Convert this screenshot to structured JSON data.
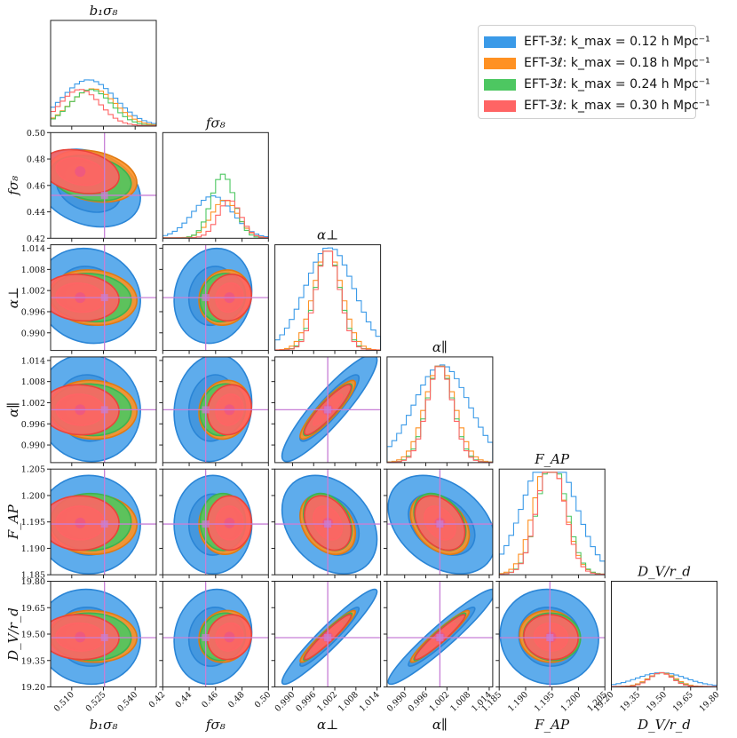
{
  "chart_data": {
    "type": "corner-plot",
    "parameters": [
      {
        "key": "b1s8",
        "label": "b₁σ₈",
        "title": "b₁σ₈",
        "range": [
          0.5,
          0.55
        ],
        "ticks": [
          0.51,
          0.525,
          0.54
        ],
        "tick_labels": [
          "0.510",
          "0.525",
          "0.540"
        ],
        "fiducial": 0.5255
      },
      {
        "key": "fs8",
        "label": "fσ₈",
        "title": "fσ₈",
        "range": [
          0.42,
          0.5
        ],
        "ticks": [
          0.42,
          0.44,
          0.46,
          0.48,
          0.5
        ],
        "tick_labels": [
          "0.42",
          "0.44",
          "0.46",
          "0.48",
          "0.50"
        ],
        "fiducial": 0.4525
      },
      {
        "key": "aperp",
        "label": "α⊥",
        "title": "α⊥",
        "range": [
          0.985,
          1.015
        ],
        "ticks": [
          0.99,
          0.996,
          1.002,
          1.008,
          1.014
        ],
        "tick_labels": [
          "0.990",
          "0.996",
          "1.002",
          "1.008",
          "1.014"
        ],
        "fiducial": 1.0
      },
      {
        "key": "apar",
        "label": "α∥",
        "title": "α∥",
        "range": [
          0.985,
          1.015
        ],
        "ticks": [
          0.99,
          0.996,
          1.002,
          1.008,
          1.014
        ],
        "tick_labels": [
          "0.990",
          "0.996",
          "1.002",
          "1.008",
          "1.014"
        ],
        "fiducial": 1.0
      },
      {
        "key": "FAP",
        "label": "F_AP",
        "title": "F_AP",
        "range": [
          1.185,
          1.205
        ],
        "ticks": [
          1.185,
          1.19,
          1.195,
          1.2,
          1.205
        ],
        "tick_labels": [
          "1.185",
          "1.190",
          "1.195",
          "1.200",
          "1.205"
        ],
        "fiducial": 1.1946
      },
      {
        "key": "DV",
        "label": "D_V/r_d",
        "title": "D_V/r_d",
        "range": [
          19.2,
          19.8
        ],
        "ticks": [
          19.2,
          19.35,
          19.5,
          19.65,
          19.8
        ],
        "tick_labels": [
          "19.20",
          "19.35",
          "19.50",
          "19.65",
          "19.80"
        ],
        "fiducial": 19.48
      }
    ],
    "series": [
      {
        "name": "EFT-3ℓ: k_max = 0.12 h Mpc⁻¹",
        "kmax": 0.12,
        "color": "#3a9ae8",
        "means": [
          0.518,
          0.458,
          1.0005,
          1.0005,
          1.1945,
          19.485
        ],
        "sigmas": [
          0.01,
          0.012,
          0.0055,
          0.0062,
          0.0038,
          0.11
        ]
      },
      {
        "name": "EFT-3ℓ: k_max = 0.18 h Mpc⁻¹",
        "kmax": 0.18,
        "color": "#ff9122",
        "means": [
          0.52,
          0.467,
          1.0,
          1.0,
          1.1945,
          19.487
        ],
        "sigmas": [
          0.0085,
          0.008,
          0.0032,
          0.0034,
          0.0023,
          0.06
        ]
      },
      {
        "name": "EFT-3ℓ: k_max = 0.24 h Mpc⁻¹",
        "kmax": 0.24,
        "color": "#4dc761",
        "means": [
          0.519,
          0.4655,
          1.0,
          1.0,
          1.195,
          19.485
        ],
        "sigmas": [
          0.0078,
          0.007,
          0.0028,
          0.003,
          0.0022,
          0.055
        ]
      },
      {
        "name": "EFT-3ℓ: k_max = 0.30 h Mpc⁻¹",
        "kmax": 0.3,
        "color": "#ff6464",
        "means": [
          0.514,
          0.4705,
          1.0,
          1.0,
          1.1948,
          19.483
        ],
        "sigmas": [
          0.0075,
          0.0068,
          0.0027,
          0.0029,
          0.0021,
          0.052
        ]
      }
    ],
    "correlations": {
      "0-1": -0.25,
      "0-2": -0.1,
      "0-3": -0.05,
      "0-4": 0.0,
      "0-5": -0.05,
      "1-2": 0.1,
      "1-3": 0.1,
      "1-4": 0.0,
      "1-5": 0.1,
      "2-3": 0.9,
      "2-4": -0.3,
      "2-5": 0.95,
      "3-4": -0.35,
      "3-5": 0.95,
      "4-5": -0.05
    },
    "legend_position": "top-right"
  },
  "legend": {
    "prefix": "EFT-3ℓ:",
    "items": [
      {
        "kmax_text": "k_max = 0.12 h Mpc⁻¹",
        "color": "#3a9ae8"
      },
      {
        "kmax_text": "k_max = 0.18 h Mpc⁻¹",
        "color": "#ff9122"
      },
      {
        "kmax_text": "k_max = 0.24 h Mpc⁻¹",
        "color": "#4dc761"
      },
      {
        "kmax_text": "k_max = 0.30 h Mpc⁻¹",
        "color": "#ff6464"
      }
    ]
  },
  "fiducial_color": "#c77fd6"
}
